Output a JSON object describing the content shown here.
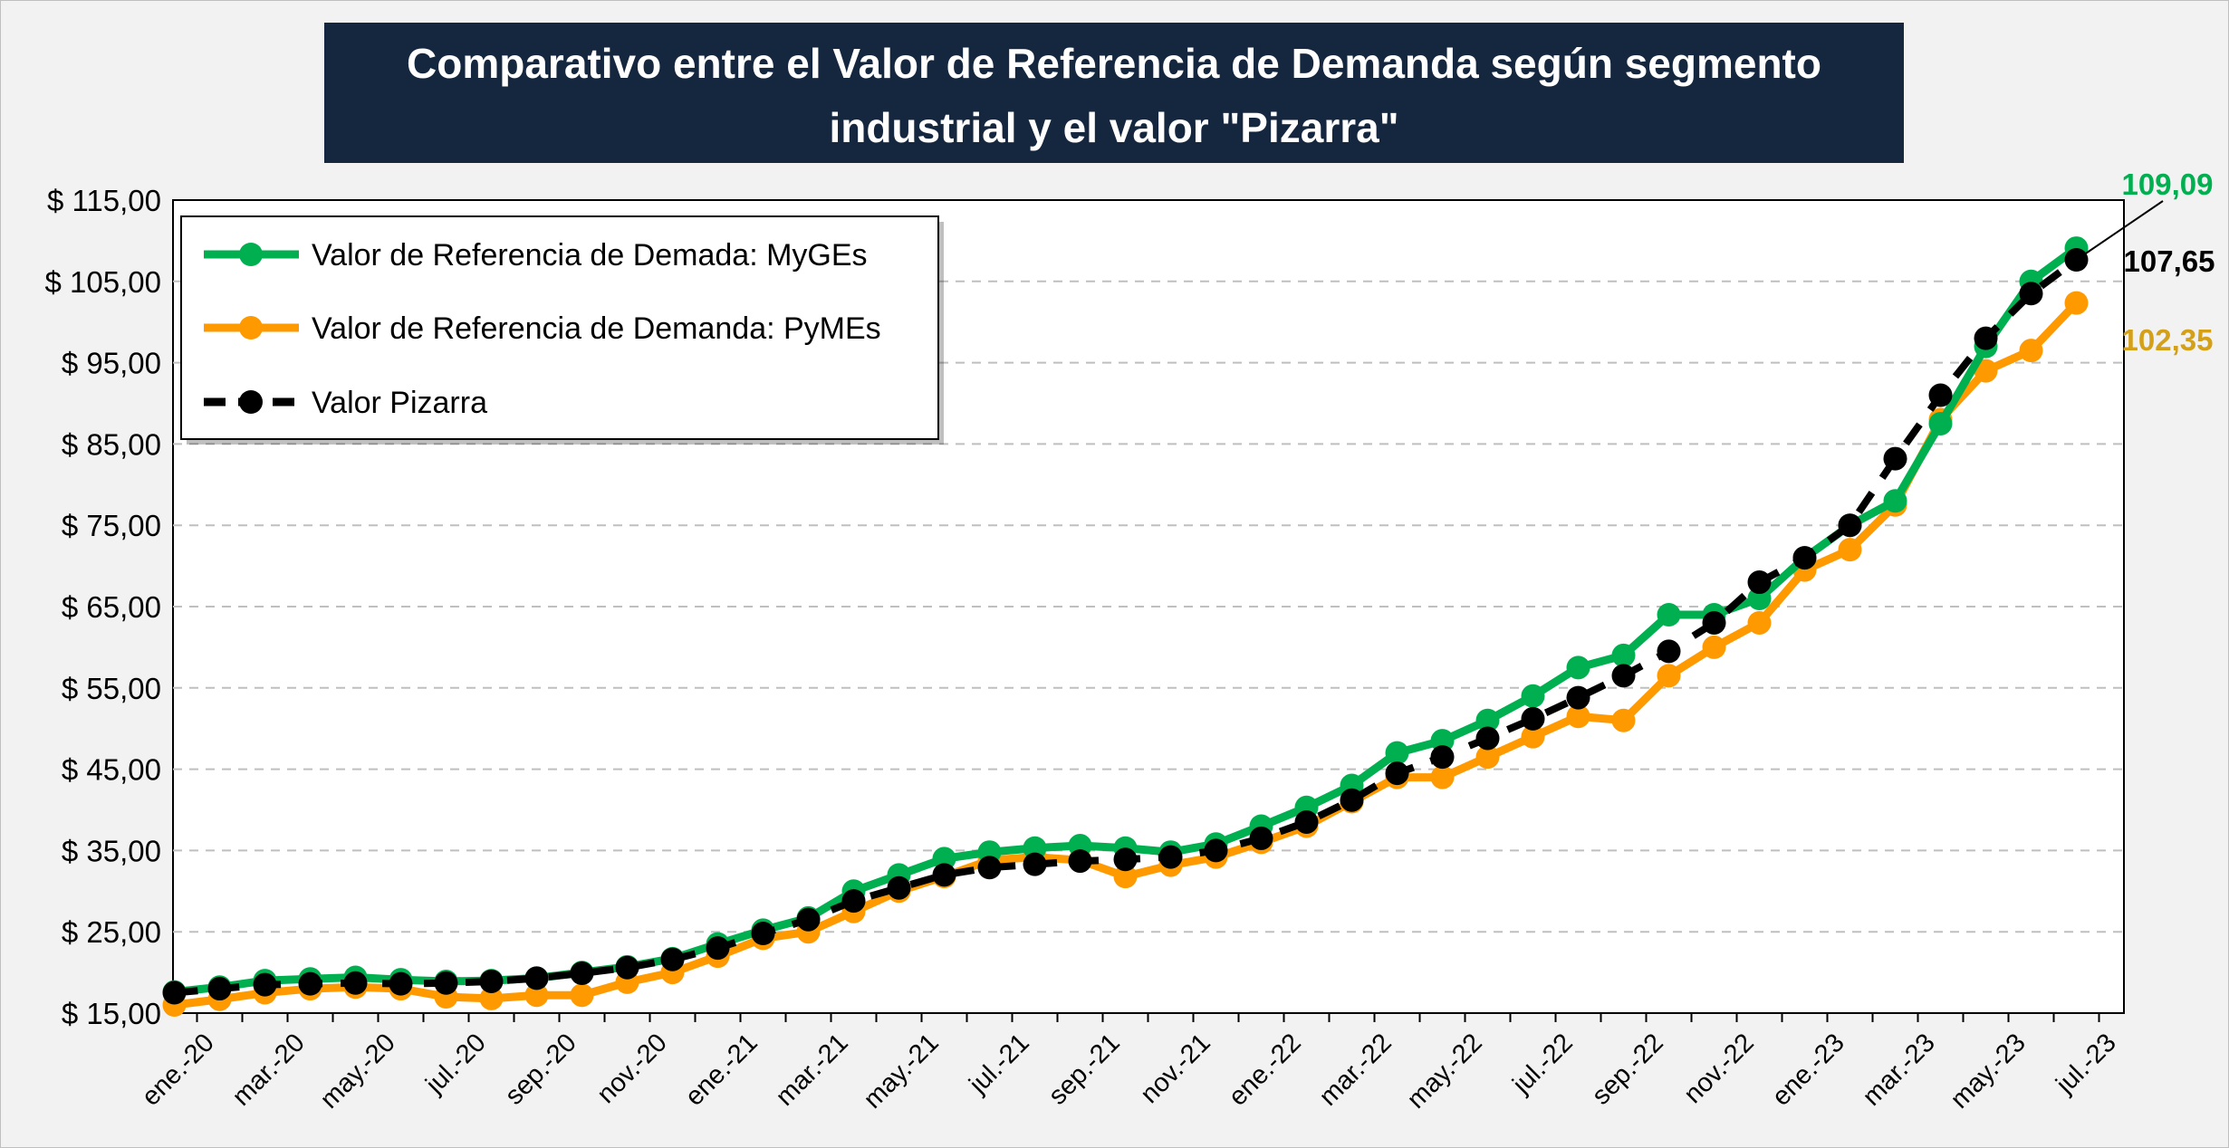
{
  "chart_data": {
    "type": "line",
    "title_lines": [
      "Comparativo entre el Valor de Referencia de Demanda según segmento",
      "industrial y el valor \"Pizarra\""
    ],
    "xlabel": "",
    "ylabel": "",
    "ylim": [
      15,
      115
    ],
    "yticks": [
      {
        "value": 115,
        "label": "$ 115,00"
      },
      {
        "value": 105,
        "label": "$ 105,00"
      },
      {
        "value": 95,
        "label": "$ 95,00"
      },
      {
        "value": 85,
        "label": "$ 85,00"
      },
      {
        "value": 75,
        "label": "$ 75,00"
      },
      {
        "value": 65,
        "label": "$ 65,00"
      },
      {
        "value": 55,
        "label": "$ 55,00"
      },
      {
        "value": 45,
        "label": "$ 45,00"
      },
      {
        "value": 35,
        "label": "$ 35,00"
      },
      {
        "value": 25,
        "label": "$ 25,00"
      },
      {
        "value": 15,
        "label": "$ 15,00"
      }
    ],
    "x_tick_labels": [
      {
        "index": 0,
        "label": "ene.-20"
      },
      {
        "index": 2,
        "label": "mar.-20"
      },
      {
        "index": 4,
        "label": "may.-20"
      },
      {
        "index": 6,
        "label": "jul.-20"
      },
      {
        "index": 8,
        "label": "sep.-20"
      },
      {
        "index": 10,
        "label": "nov.-20"
      },
      {
        "index": 12,
        "label": "ene.-21"
      },
      {
        "index": 14,
        "label": "mar.-21"
      },
      {
        "index": 16,
        "label": "may.-21"
      },
      {
        "index": 18,
        "label": "jul.-21"
      },
      {
        "index": 20,
        "label": "sep.-21"
      },
      {
        "index": 22,
        "label": "nov.-21"
      },
      {
        "index": 24,
        "label": "ene.-22"
      },
      {
        "index": 26,
        "label": "mar.-22"
      },
      {
        "index": 28,
        "label": "may.-22"
      },
      {
        "index": 30,
        "label": "jul.-22"
      },
      {
        "index": 32,
        "label": "sep.-22"
      },
      {
        "index": 34,
        "label": "nov.-22"
      },
      {
        "index": 36,
        "label": "ene.-23"
      },
      {
        "index": 38,
        "label": "mar.-23"
      },
      {
        "index": 40,
        "label": "may.-23"
      },
      {
        "index": 42,
        "label": "jul.-23"
      }
    ],
    "grid": "horizontal-dashed",
    "legend_position": "top-left",
    "series": [
      {
        "name": "Valor de Referencia de Demada: MyGEs",
        "color": "#00b050",
        "style": "solid",
        "x": [
          -0.5,
          0.5,
          1.5,
          2.5,
          3.5,
          4.5,
          5.5,
          6.5,
          7.5,
          8.5,
          9.5,
          10.5,
          11.5,
          12.5,
          13.5,
          14.5,
          15.5,
          16.5,
          17.5,
          18.5,
          19.5,
          20.5,
          21.5,
          22.5,
          23.5,
          24.5,
          25.5,
          26.5,
          27.5,
          28.5,
          29.5,
          30.5,
          31.5,
          32.5,
          33.5,
          34.5,
          35.5,
          36.5,
          37.5,
          38.5,
          39.5,
          40.5,
          41.5
        ],
        "values": [
          17.6,
          18.2,
          19.0,
          19.2,
          19.4,
          19.1,
          18.9,
          19.0,
          19.3,
          20.0,
          20.7,
          21.7,
          23.5,
          25.2,
          26.7,
          30.0,
          32.0,
          34.0,
          34.8,
          35.3,
          35.6,
          35.3,
          34.8,
          35.8,
          38.0,
          40.3,
          43.0,
          47.0,
          48.5,
          51.0,
          54.0,
          57.5,
          59.0,
          64.0,
          64.0,
          66.0,
          71.0,
          75.0,
          78.0,
          87.5,
          97.0,
          105.0,
          109.09
        ]
      },
      {
        "name": "Valor de Referencia de Demanda: PyMEs",
        "color": "#ff9900",
        "style": "solid",
        "x": [
          -0.5,
          0.5,
          1.5,
          2.5,
          3.5,
          4.5,
          5.5,
          6.5,
          7.5,
          8.5,
          9.5,
          10.5,
          11.5,
          12.5,
          13.5,
          14.5,
          15.5,
          16.5,
          17.5,
          18.5,
          19.5,
          20.5,
          21.5,
          22.5,
          23.5,
          24.5,
          25.5,
          26.5,
          27.5,
          28.5,
          29.5,
          30.5,
          31.5,
          32.5,
          33.5,
          34.5,
          35.5,
          36.5,
          37.5,
          38.5,
          39.5,
          40.5,
          41.5
        ],
        "values": [
          16.0,
          16.7,
          17.5,
          18.0,
          18.2,
          18.0,
          17.0,
          16.8,
          17.2,
          17.2,
          18.8,
          20.0,
          22.0,
          24.2,
          25.0,
          27.5,
          30.0,
          31.8,
          33.8,
          34.2,
          33.8,
          31.8,
          33.2,
          34.2,
          36.0,
          38.0,
          41.0,
          44.0,
          44.0,
          46.5,
          49.0,
          51.5,
          51.0,
          56.5,
          60.0,
          63.0,
          69.5,
          72.0,
          77.5,
          88.0,
          94.0,
          96.5,
          102.35
        ]
      },
      {
        "name": "Valor Pizarra",
        "color": "#000000",
        "style": "dashed",
        "x": [
          -0.5,
          0.5,
          1.5,
          2.5,
          3.5,
          4.5,
          5.5,
          6.5,
          7.5,
          8.5,
          9.5,
          10.5,
          11.5,
          12.5,
          13.5,
          14.5,
          15.5,
          16.5,
          17.5,
          18.5,
          19.5,
          20.5,
          21.5,
          22.5,
          23.5,
          24.5,
          25.5,
          26.5,
          27.5,
          28.5,
          29.5,
          30.5,
          31.5,
          32.5,
          33.5,
          34.5,
          35.5,
          36.5,
          37.5,
          38.5,
          39.5,
          40.5,
          41.5
        ],
        "values": [
          17.5,
          18.0,
          18.5,
          18.6,
          18.7,
          18.6,
          18.7,
          18.9,
          19.3,
          19.9,
          20.6,
          21.6,
          23.0,
          24.8,
          26.5,
          28.8,
          30.4,
          32.0,
          32.9,
          33.3,
          33.7,
          33.9,
          34.2,
          35.0,
          36.5,
          38.5,
          41.2,
          44.5,
          46.5,
          48.8,
          51.2,
          53.8,
          56.5,
          59.5,
          63.0,
          68.0,
          71.0,
          75.0,
          83.2,
          91.0,
          98.0,
          103.5,
          107.65
        ]
      }
    ],
    "end_labels": [
      {
        "series": 0,
        "text": "109,09",
        "color": "#00b050"
      },
      {
        "series": 2,
        "text": "107,65",
        "color": "#000000"
      },
      {
        "series": 1,
        "text": "102,35",
        "color": "#d4a017"
      }
    ]
  },
  "colors": {
    "title_background": "#15263f",
    "title_text": "#ffffff",
    "background": "#f2f2f2",
    "plot_background": "#ffffff",
    "grid": "#bfbfbf"
  }
}
